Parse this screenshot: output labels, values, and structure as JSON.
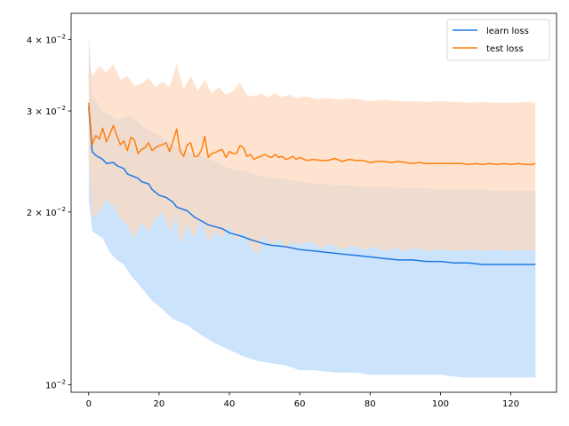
{
  "chart_data": {
    "type": "line",
    "title": "",
    "xlabel": "",
    "ylabel": "",
    "xlim": [
      -5,
      133
    ],
    "ylim": [
      0.0097,
      0.0444
    ],
    "yscale": "log",
    "grid": false,
    "legend_position": "top-right",
    "x_ticks": [
      0,
      20,
      40,
      60,
      80,
      100,
      120
    ],
    "x_tick_labels": [
      "0",
      "20",
      "40",
      "60",
      "80",
      "100",
      "120"
    ],
    "y_ticks": [
      0.01,
      0.02,
      0.03,
      0.04
    ],
    "y_tick_labels": [
      {
        "mantissa": "",
        "exp": "−2",
        "value": 0.01
      },
      {
        "mantissa": "2 × ",
        "exp": "−2",
        "value": 0.02
      },
      {
        "mantissa": "3 × ",
        "exp": "−2",
        "value": 0.03
      },
      {
        "mantissa": "4 × ",
        "exp": "−2",
        "value": 0.04
      }
    ],
    "y_tick_base": "10",
    "series": [
      {
        "name": "learn loss",
        "color": "#1f77e4",
        "band_color": "#cce4fb",
        "points": [
          [
            0,
            0.0305
          ],
          [
            1,
            0.0255
          ],
          [
            2,
            0.0251
          ],
          [
            3,
            0.0249
          ],
          [
            4,
            0.0247
          ],
          [
            5,
            0.0243
          ],
          [
            7,
            0.0244
          ],
          [
            8,
            0.0241
          ],
          [
            10,
            0.0238
          ],
          [
            11,
            0.0233
          ],
          [
            14,
            0.0229
          ],
          [
            15,
            0.0226
          ],
          [
            17,
            0.0224
          ],
          [
            18,
            0.0219
          ],
          [
            20,
            0.0214
          ],
          [
            22,
            0.0212
          ],
          [
            24,
            0.0208
          ],
          [
            25,
            0.0204
          ],
          [
            28,
            0.0201
          ],
          [
            30,
            0.0196
          ],
          [
            32,
            0.0193
          ],
          [
            34,
            0.019
          ],
          [
            38,
            0.0187
          ],
          [
            40,
            0.0184
          ],
          [
            44,
            0.0181
          ],
          [
            46,
            0.0179
          ],
          [
            50,
            0.0176
          ],
          [
            52,
            0.0175
          ],
          [
            56,
            0.0174
          ],
          [
            60,
            0.0172
          ],
          [
            64,
            0.0171
          ],
          [
            68,
            0.017
          ],
          [
            72,
            0.0169
          ],
          [
            76,
            0.0168
          ],
          [
            80,
            0.0167
          ],
          [
            84,
            0.0166
          ],
          [
            88,
            0.0165
          ],
          [
            92,
            0.0165
          ],
          [
            96,
            0.0164
          ],
          [
            100,
            0.0164
          ],
          [
            104,
            0.0163
          ],
          [
            108,
            0.0163
          ],
          [
            112,
            0.0162
          ],
          [
            116,
            0.0162
          ],
          [
            120,
            0.0162
          ],
          [
            124,
            0.0162
          ],
          [
            127,
            0.0162
          ]
        ],
        "upper": [
          [
            0,
            0.0405
          ],
          [
            1,
            0.032
          ],
          [
            4,
            0.03
          ],
          [
            8,
            0.029
          ],
          [
            12,
            0.0295
          ],
          [
            16,
            0.028
          ],
          [
            20,
            0.0272
          ],
          [
            24,
            0.0262
          ],
          [
            28,
            0.0255
          ],
          [
            32,
            0.025
          ],
          [
            36,
            0.0245
          ],
          [
            40,
            0.0238
          ],
          [
            44,
            0.0236
          ],
          [
            48,
            0.0232
          ],
          [
            52,
            0.023
          ],
          [
            56,
            0.0228
          ],
          [
            60,
            0.0226
          ],
          [
            64,
            0.0224
          ],
          [
            70,
            0.0223
          ],
          [
            76,
            0.0222
          ],
          [
            80,
            0.0221
          ],
          [
            86,
            0.0221
          ],
          [
            90,
            0.022
          ],
          [
            96,
            0.022
          ],
          [
            100,
            0.0219
          ],
          [
            106,
            0.0219
          ],
          [
            110,
            0.0219
          ],
          [
            116,
            0.0218
          ],
          [
            120,
            0.0218
          ],
          [
            127,
            0.0218
          ]
        ],
        "lower": [
          [
            0,
            0.021
          ],
          [
            1,
            0.0185
          ],
          [
            4,
            0.018
          ],
          [
            6,
            0.017
          ],
          [
            8,
            0.0165
          ],
          [
            10,
            0.0162
          ],
          [
            12,
            0.0155
          ],
          [
            14,
            0.015
          ],
          [
            16,
            0.0145
          ],
          [
            18,
            0.014
          ],
          [
            20,
            0.0137
          ],
          [
            24,
            0.013
          ],
          [
            28,
            0.0127
          ],
          [
            32,
            0.0122
          ],
          [
            36,
            0.0118
          ],
          [
            40,
            0.0115
          ],
          [
            44,
            0.0112
          ],
          [
            48,
            0.011
          ],
          [
            52,
            0.0109
          ],
          [
            56,
            0.0108
          ],
          [
            60,
            0.0106
          ],
          [
            64,
            0.0106
          ],
          [
            70,
            0.0105
          ],
          [
            76,
            0.0105
          ],
          [
            80,
            0.0104
          ],
          [
            86,
            0.0104
          ],
          [
            90,
            0.0104
          ],
          [
            96,
            0.0104
          ],
          [
            100,
            0.0104
          ],
          [
            106,
            0.0103
          ],
          [
            110,
            0.0103
          ],
          [
            116,
            0.0103
          ],
          [
            120,
            0.0103
          ],
          [
            124,
            0.0103
          ],
          [
            127,
            0.0103
          ]
        ]
      },
      {
        "name": "test loss",
        "color": "#ff7f0e",
        "band_color": "#fdd9bc",
        "points": [
          [
            0,
            0.031
          ],
          [
            1,
            0.0262
          ],
          [
            2,
            0.0272
          ],
          [
            3,
            0.0268
          ],
          [
            4,
            0.028
          ],
          [
            5,
            0.0265
          ],
          [
            6,
            0.0273
          ],
          [
            7,
            0.0283
          ],
          [
            8,
            0.0272
          ],
          [
            9,
            0.0262
          ],
          [
            10,
            0.0266
          ],
          [
            11,
            0.0256
          ],
          [
            12,
            0.027
          ],
          [
            13,
            0.0267
          ],
          [
            14,
            0.0253
          ],
          [
            15,
            0.0257
          ],
          [
            16,
            0.0259
          ],
          [
            17,
            0.0264
          ],
          [
            18,
            0.0256
          ],
          [
            19,
            0.0259
          ],
          [
            20,
            0.0261
          ],
          [
            21,
            0.0262
          ],
          [
            22,
            0.0264
          ],
          [
            23,
            0.0255
          ],
          [
            24,
            0.0266
          ],
          [
            25,
            0.0279
          ],
          [
            26,
            0.0255
          ],
          [
            27,
            0.025
          ],
          [
            28,
            0.0262
          ],
          [
            29,
            0.0264
          ],
          [
            30,
            0.025
          ],
          [
            31,
            0.025
          ],
          [
            32,
            0.0256
          ],
          [
            33,
            0.0271
          ],
          [
            34,
            0.0249
          ],
          [
            35,
            0.0253
          ],
          [
            36,
            0.0254
          ],
          [
            37,
            0.0256
          ],
          [
            38,
            0.0257
          ],
          [
            39,
            0.0249
          ],
          [
            40,
            0.0255
          ],
          [
            41,
            0.0253
          ],
          [
            42,
            0.0253
          ],
          [
            43,
            0.0261
          ],
          [
            44,
            0.0259
          ],
          [
            45,
            0.025
          ],
          [
            46,
            0.0252
          ],
          [
            47,
            0.0247
          ],
          [
            48,
            0.0249
          ],
          [
            49,
            0.025
          ],
          [
            50,
            0.0252
          ],
          [
            51,
            0.025
          ],
          [
            52,
            0.0249
          ],
          [
            53,
            0.0252
          ],
          [
            54,
            0.0249
          ],
          [
            55,
            0.025
          ],
          [
            56,
            0.0247
          ],
          [
            57,
            0.0248
          ],
          [
            58,
            0.025
          ],
          [
            59,
            0.0247
          ],
          [
            60,
            0.0249
          ],
          [
            62,
            0.0246
          ],
          [
            64,
            0.0247
          ],
          [
            66,
            0.0246
          ],
          [
            68,
            0.0246
          ],
          [
            70,
            0.0248
          ],
          [
            72,
            0.0245
          ],
          [
            74,
            0.0247
          ],
          [
            76,
            0.0246
          ],
          [
            78,
            0.0246
          ],
          [
            80,
            0.0244
          ],
          [
            82,
            0.0245
          ],
          [
            84,
            0.0245
          ],
          [
            86,
            0.0244
          ],
          [
            88,
            0.0245
          ],
          [
            90,
            0.0244
          ],
          [
            92,
            0.0243
          ],
          [
            94,
            0.0244
          ],
          [
            96,
            0.0243
          ],
          [
            98,
            0.0243
          ],
          [
            100,
            0.0243
          ],
          [
            102,
            0.0243
          ],
          [
            104,
            0.0243
          ],
          [
            106,
            0.0243
          ],
          [
            108,
            0.0242
          ],
          [
            110,
            0.0243
          ],
          [
            112,
            0.0242
          ],
          [
            114,
            0.0243
          ],
          [
            116,
            0.0242
          ],
          [
            118,
            0.0243
          ],
          [
            120,
            0.0242
          ],
          [
            122,
            0.0243
          ],
          [
            124,
            0.0242
          ],
          [
            126,
            0.0242
          ],
          [
            127,
            0.0243
          ]
        ],
        "upper": [
          [
            0,
            0.037
          ],
          [
            1,
            0.0345
          ],
          [
            3,
            0.036
          ],
          [
            5,
            0.035
          ],
          [
            7,
            0.0362
          ],
          [
            9,
            0.034
          ],
          [
            11,
            0.0345
          ],
          [
            13,
            0.0332
          ],
          [
            15,
            0.0335
          ],
          [
            17,
            0.0342
          ],
          [
            19,
            0.033
          ],
          [
            21,
            0.0338
          ],
          [
            23,
            0.033
          ],
          [
            25,
            0.0362
          ],
          [
            27,
            0.0328
          ],
          [
            29,
            0.0345
          ],
          [
            31,
            0.0325
          ],
          [
            33,
            0.034
          ],
          [
            35,
            0.0322
          ],
          [
            37,
            0.033
          ],
          [
            39,
            0.032
          ],
          [
            41,
            0.0325
          ],
          [
            43,
            0.0336
          ],
          [
            45,
            0.032
          ],
          [
            47,
            0.0318
          ],
          [
            49,
            0.0322
          ],
          [
            51,
            0.0317
          ],
          [
            53,
            0.0322
          ],
          [
            55,
            0.0317
          ],
          [
            57,
            0.032
          ],
          [
            59,
            0.0316
          ],
          [
            62,
            0.0318
          ],
          [
            65,
            0.0315
          ],
          [
            68,
            0.0316
          ],
          [
            71,
            0.0314
          ],
          [
            74,
            0.0316
          ],
          [
            77,
            0.0314
          ],
          [
            80,
            0.0312
          ],
          [
            84,
            0.0314
          ],
          [
            88,
            0.0312
          ],
          [
            92,
            0.0312
          ],
          [
            96,
            0.0311
          ],
          [
            100,
            0.0312
          ],
          [
            104,
            0.0311
          ],
          [
            108,
            0.031
          ],
          [
            112,
            0.0311
          ],
          [
            116,
            0.031
          ],
          [
            120,
            0.031
          ],
          [
            124,
            0.0311
          ],
          [
            127,
            0.031
          ]
        ],
        "lower": [
          [
            0,
            0.025
          ],
          [
            1,
            0.0195
          ],
          [
            3,
            0.02
          ],
          [
            5,
            0.021
          ],
          [
            7,
            0.0205
          ],
          [
            9,
            0.0195
          ],
          [
            11,
            0.019
          ],
          [
            13,
            0.018
          ],
          [
            15,
            0.0192
          ],
          [
            17,
            0.0185
          ],
          [
            19,
            0.0195
          ],
          [
            21,
            0.02
          ],
          [
            23,
            0.0185
          ],
          [
            25,
            0.0198
          ],
          [
            26,
            0.0175
          ],
          [
            28,
            0.019
          ],
          [
            30,
            0.018
          ],
          [
            32,
            0.0195
          ],
          [
            34,
            0.0178
          ],
          [
            36,
            0.0185
          ],
          [
            38,
            0.018
          ],
          [
            40,
            0.019
          ],
          [
            42,
            0.0178
          ],
          [
            44,
            0.0185
          ],
          [
            46,
            0.0175
          ],
          [
            48,
            0.0168
          ],
          [
            50,
            0.0182
          ],
          [
            52,
            0.0175
          ],
          [
            54,
            0.018
          ],
          [
            56,
            0.0172
          ],
          [
            58,
            0.0178
          ],
          [
            60,
            0.0175
          ],
          [
            63,
            0.0178
          ],
          [
            66,
            0.0173
          ],
          [
            69,
            0.0176
          ],
          [
            72,
            0.0172
          ],
          [
            75,
            0.0175
          ],
          [
            78,
            0.0172
          ],
          [
            81,
            0.0174
          ],
          [
            84,
            0.0171
          ],
          [
            87,
            0.0173
          ],
          [
            90,
            0.0171
          ],
          [
            93,
            0.0173
          ],
          [
            96,
            0.0171
          ],
          [
            100,
            0.0172
          ],
          [
            104,
            0.0171
          ],
          [
            108,
            0.0172
          ],
          [
            112,
            0.0171
          ],
          [
            116,
            0.0172
          ],
          [
            120,
            0.0171
          ],
          [
            124,
            0.0172
          ],
          [
            127,
            0.0171
          ]
        ]
      }
    ]
  }
}
